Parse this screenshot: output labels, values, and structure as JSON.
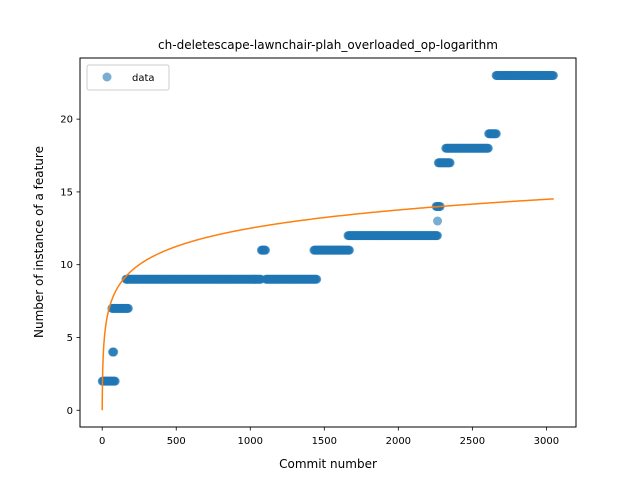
{
  "chart_data": {
    "type": "scatter",
    "title": "ch-deletescape-lawnchair-plah_overloaded_op-logarithm",
    "xlabel": "Commit number",
    "ylabel": "Number of instance of a feature",
    "xlim": [
      -150,
      3200
    ],
    "ylim": [
      -1.15,
      24.2
    ],
    "xticks": [
      0,
      500,
      1000,
      1500,
      2000,
      2500,
      3000
    ],
    "yticks": [
      0,
      5,
      10,
      15,
      20
    ],
    "grid": false,
    "legend": {
      "position": "top-left",
      "entries": [
        "data"
      ]
    },
    "colors": {
      "data": "#1f77b4",
      "fit": "#ff7f0e"
    },
    "series": [
      {
        "name": "data",
        "kind": "scatter",
        "segments": [
          {
            "x_start": 0,
            "x_end": 90,
            "y": 2
          },
          {
            "x_start": 70,
            "x_end": 80,
            "y": 4
          },
          {
            "x_start": 65,
            "x_end": 180,
            "y": 7
          },
          {
            "x_start": 160,
            "x_end": 1075,
            "y": 9
          },
          {
            "x_start": 1075,
            "x_end": 1105,
            "y": 11
          },
          {
            "x_start": 1105,
            "x_end": 1450,
            "y": 9
          },
          {
            "x_start": 1430,
            "x_end": 1670,
            "y": 11
          },
          {
            "x_start": 1660,
            "x_end": 2265,
            "y": 12
          },
          {
            "x_start": 2265,
            "x_end": 2265,
            "y": 13
          },
          {
            "x_start": 2255,
            "x_end": 2285,
            "y": 14
          },
          {
            "x_start": 2270,
            "x_end": 2350,
            "y": 17
          },
          {
            "x_start": 2320,
            "x_end": 2610,
            "y": 18
          },
          {
            "x_start": 2610,
            "x_end": 2665,
            "y": 19
          },
          {
            "x_start": 2660,
            "x_end": 3050,
            "y": 23
          }
        ]
      },
      {
        "kind": "line",
        "formula": "a*ln(1+x)",
        "a": 1.81,
        "x_range": [
          0,
          3050
        ]
      }
    ]
  }
}
